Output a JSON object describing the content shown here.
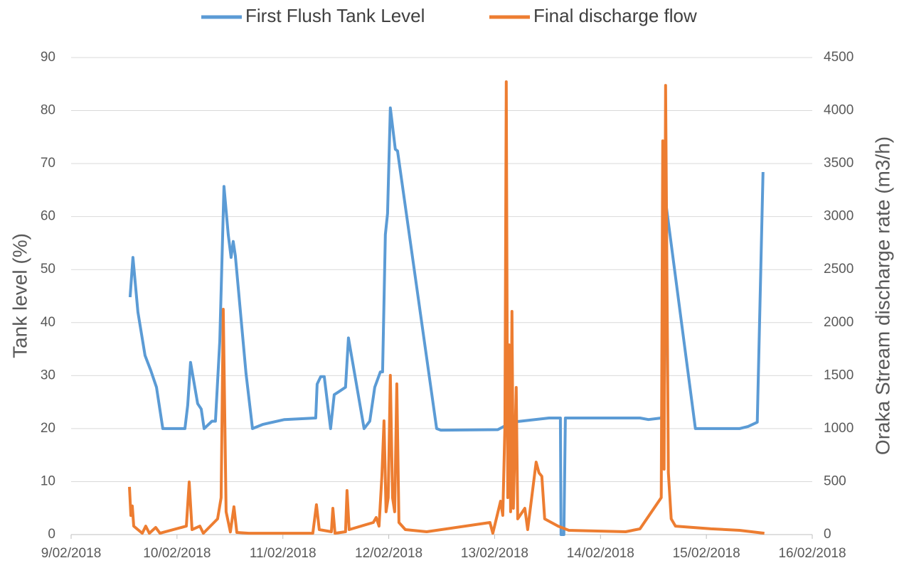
{
  "chart_data": {
    "type": "line",
    "y_label": "Tank level (%)",
    "y2_label": "Oraka Stream discharge rate (m3/h)",
    "legend": "top",
    "grid": true,
    "xlim": [
      43140,
      43147
    ],
    "xticks": [
      {
        "value": 43140,
        "label": "9/02/2018"
      },
      {
        "value": 43141,
        "label": "10/02/2018"
      },
      {
        "value": 43142,
        "label": "11/02/2018"
      },
      {
        "value": 43143,
        "label": "12/02/2018"
      },
      {
        "value": 43144,
        "label": "13/02/2018"
      },
      {
        "value": 43145,
        "label": "14/02/2018"
      },
      {
        "value": 43146,
        "label": "15/02/2018"
      },
      {
        "value": 43147,
        "label": "16/02/2018"
      }
    ],
    "ylim": [
      0,
      90
    ],
    "yticks": [
      0,
      10,
      20,
      30,
      40,
      50,
      60,
      70,
      80,
      90
    ],
    "y2lim": [
      0,
      4500
    ],
    "y2ticks": [
      0,
      500,
      1000,
      1500,
      2000,
      2500,
      3000,
      3500,
      4000,
      4500
    ],
    "series": [
      {
        "name": "First Flush Tank Level",
        "color": "#5b9bd5",
        "x": [
          43140.557,
          43140.584,
          43140.631,
          43140.698,
          43140.752,
          43140.806,
          43140.866,
          43141.075,
          43141.101,
          43141.128,
          43141.195,
          43141.229,
          43141.256,
          43141.33,
          43141.363,
          43141.404,
          43141.444,
          43141.484,
          43141.511,
          43141.531,
          43141.551,
          43141.652,
          43141.713,
          43141.813,
          43142.015,
          43142.31,
          43142.324,
          43142.357,
          43142.391,
          43142.451,
          43142.485,
          43142.532,
          43142.592,
          43142.619,
          43142.767,
          43142.821,
          43142.868,
          43142.921,
          43142.942,
          43142.968,
          43142.989,
          43143.015,
          43143.062,
          43143.083,
          43143.452,
          43143.492,
          43144.03,
          43144.164,
          43144.513,
          43144.621,
          43144.627,
          43144.654,
          43144.668,
          43145.373,
          43145.453,
          43145.574,
          43145.601,
          43145.621,
          43145.896,
          43146.313,
          43146.394,
          43146.481,
          43146.535
        ],
        "values": [
          44.8,
          52.3,
          42,
          33.8,
          31,
          27.8,
          20,
          20,
          24.4,
          32.5,
          24.7,
          23.7,
          20,
          21.4,
          21.4,
          36.5,
          65.7,
          56.6,
          52.3,
          55.3,
          52.6,
          30.4,
          20,
          20.8,
          21.7,
          22,
          28.4,
          29.8,
          29.8,
          20,
          26.4,
          27,
          27.8,
          37.1,
          20,
          21.4,
          27.8,
          30.7,
          30.7,
          56.6,
          60.6,
          80.5,
          72.7,
          72.4,
          20,
          19.7,
          19.8,
          21.2,
          22,
          22,
          0,
          0,
          22,
          22,
          21.7,
          22,
          24.4,
          62,
          20,
          20,
          20.4,
          21.2,
          68.4
        ]
      },
      {
        "name": "Final discharge flow",
        "color": "#ed7d31",
        "axis": "y2",
        "x": [
          43140.551,
          43140.564,
          43140.578,
          43140.591,
          43140.672,
          43140.705,
          43140.739,
          43140.799,
          43140.839,
          43141.088,
          43141.115,
          43141.142,
          43141.216,
          43141.249,
          43141.383,
          43141.417,
          43141.437,
          43141.464,
          43141.504,
          43141.538,
          43141.565,
          43141.679,
          43142.283,
          43142.317,
          43142.344,
          43142.458,
          43142.472,
          43142.492,
          43142.592,
          43142.606,
          43142.626,
          43142.854,
          43142.881,
          43142.908,
          43142.935,
          43142.955,
          43142.975,
          43142.995,
          43143.015,
          43143.036,
          43143.056,
          43143.076,
          43143.096,
          43143.157,
          43143.358,
          43143.956,
          43143.983,
          43144.056,
          43144.077,
          43144.097,
          43144.11,
          43144.124,
          43144.137,
          43144.151,
          43144.164,
          43144.177,
          43144.204,
          43144.218,
          43144.285,
          43144.312,
          43144.392,
          43144.419,
          43144.446,
          43144.473,
          43144.6,
          43144.701,
          43145.238,
          43145.373,
          43145.574,
          43145.588,
          43145.601,
          43145.615,
          43145.628,
          43145.641,
          43145.668,
          43145.708,
          43146.044,
          43146.313,
          43146.548
        ],
        "values": [
          450,
          180,
          270,
          80,
          13,
          80,
          13,
          67,
          13,
          80,
          496,
          47,
          80,
          13,
          148,
          349,
          2126,
          215,
          25,
          262,
          20,
          13,
          13,
          282,
          47,
          27,
          248,
          13,
          27,
          416,
          47,
          114,
          161,
          80,
          550,
          1073,
          215,
          349,
          1502,
          349,
          215,
          1422,
          114,
          47,
          27,
          114,
          13,
          315,
          181,
          1019,
          4272,
          349,
          1790,
          215,
          2106,
          248,
          1388,
          148,
          248,
          47,
          684,
          583,
          550,
          148,
          80,
          40,
          27,
          54,
          349,
          3715,
          617,
          4238,
          2360,
          584,
          148,
          80,
          54,
          40,
          13
        ]
      }
    ]
  }
}
